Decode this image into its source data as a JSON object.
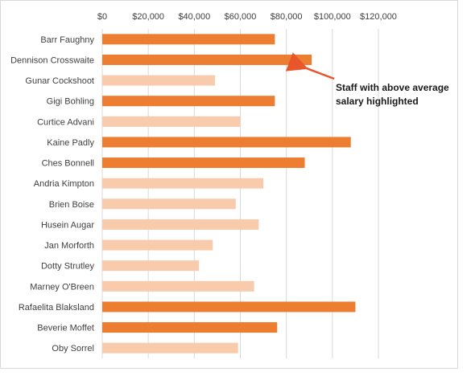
{
  "chart_data": {
    "type": "bar",
    "orientation": "horizontal",
    "categories": [
      "Barr Faughny",
      "Dennison Crosswaite",
      "Gunar Cockshoot",
      "Gigi Bohling",
      "Curtice Advani",
      "Kaine Padly",
      "Ches Bonnell",
      "Andria Kimpton",
      "Brien Boise",
      "Husein Augar",
      "Jan Morforth",
      "Dotty Strutley",
      "Marney O'Breen",
      "Rafaelita Blaksland",
      "Beverie Moffet",
      "Oby Sorrel"
    ],
    "values": [
      75000,
      91000,
      49000,
      75000,
      60000,
      108000,
      88000,
      70000,
      58000,
      68000,
      48000,
      42000,
      66000,
      110000,
      76000,
      59000
    ],
    "highlighted": [
      true,
      true,
      false,
      true,
      false,
      true,
      true,
      false,
      false,
      false,
      false,
      false,
      false,
      true,
      true,
      false
    ],
    "xlim": [
      0,
      120000
    ],
    "x_ticks": [
      0,
      20000,
      40000,
      60000,
      80000,
      100000,
      120000
    ],
    "x_tick_labels": [
      "$0",
      "$20,000",
      "$40,000",
      "$60,000",
      "$80,000",
      "$100,000",
      "$120,000"
    ],
    "x_axis_position": "top",
    "grid": true,
    "colors": {
      "highlight": "#ed7d31",
      "normal": "#f8cbad",
      "grid": "#d9d9d9",
      "arrow": "#e8562a"
    },
    "annotation": {
      "lines": [
        "Staff with above average",
        "salary highlighted"
      ],
      "points_to": "Dennison Crosswaite"
    }
  }
}
